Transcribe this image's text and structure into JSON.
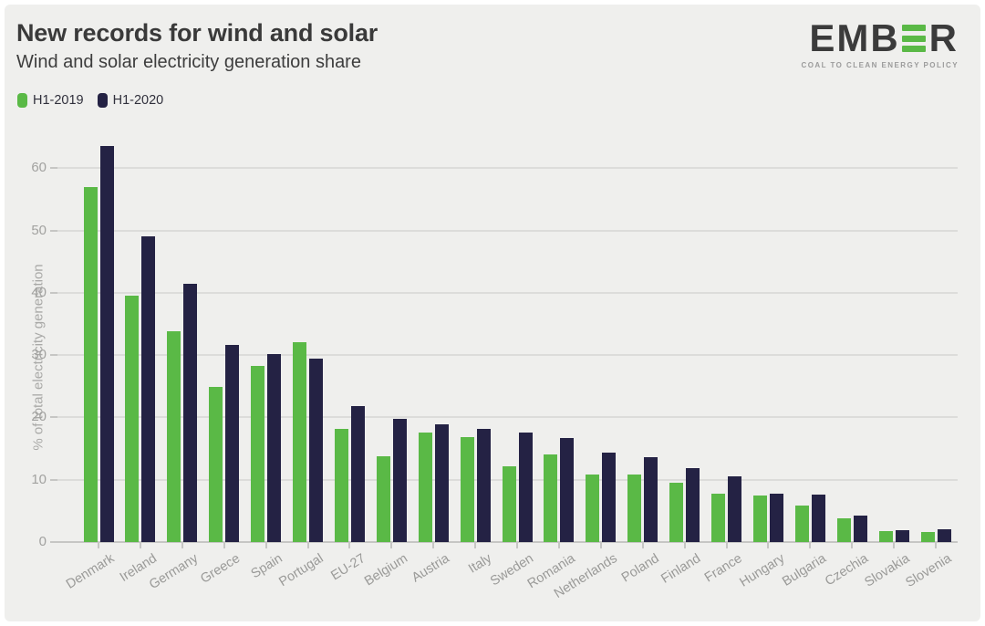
{
  "header": {
    "title": "New records for wind and solar",
    "subtitle": "Wind and solar electricity generation share"
  },
  "logo": {
    "text_left": "EMB",
    "text_right": "R",
    "tagline": "COAL TO CLEAN ENERGY POLICY",
    "bar_color": "#5ab946",
    "text_color": "#3b3b3b"
  },
  "legend": {
    "items": [
      {
        "label": "H1-2019",
        "color": "#5ab946"
      },
      {
        "label": "H1-2020",
        "color": "#242244"
      }
    ]
  },
  "chart_data": {
    "type": "bar",
    "title": "New records for wind and solar",
    "subtitle": "Wind and solar electricity generation share",
    "xlabel": "",
    "ylabel": "% of total electricity generation",
    "ylim": [
      0,
      65
    ],
    "yticks": [
      0,
      10,
      20,
      30,
      40,
      50,
      60
    ],
    "grid": "horizontal",
    "legend_position": "top-left",
    "categories": [
      "Denmark",
      "Ireland",
      "Germany",
      "Greece",
      "Spain",
      "Portugal",
      "EU-27",
      "Belgium",
      "Austria",
      "Italy",
      "Sweden",
      "Romania",
      "Netherlands",
      "Poland",
      "Finland",
      "France",
      "Hungary",
      "Bulgaria",
      "Czechia",
      "Slovakia",
      "Slovenia"
    ],
    "series": [
      {
        "name": "H1-2019",
        "color": "#5ab946",
        "values": [
          57.0,
          39.5,
          33.8,
          24.9,
          28.2,
          32.0,
          18.2,
          13.8,
          17.6,
          16.8,
          12.2,
          14.0,
          10.9,
          10.8,
          9.5,
          7.8,
          7.5,
          5.9,
          3.8,
          1.7,
          1.6
        ]
      },
      {
        "name": "H1-2020",
        "color": "#242244",
        "values": [
          63.6,
          49.0,
          41.5,
          31.6,
          30.2,
          29.5,
          21.8,
          19.8,
          18.9,
          18.2,
          17.5,
          16.7,
          14.3,
          13.6,
          11.9,
          10.5,
          7.8,
          7.6,
          4.2,
          1.9,
          2.0
        ]
      }
    ],
    "colors": {
      "background": "#efefed",
      "gridline": "#dcdcda",
      "axis": "#c6c6c4",
      "tick_text": "#a2a2a0"
    }
  }
}
